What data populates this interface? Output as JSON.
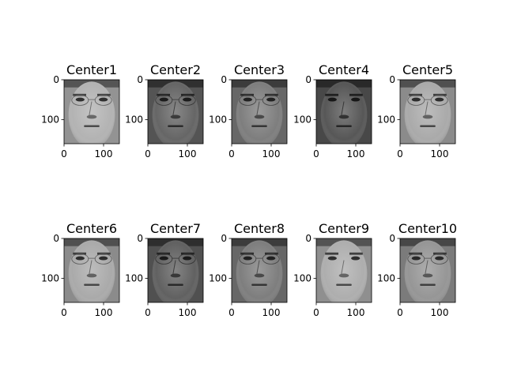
{
  "chart_data": {
    "type": "image-grid",
    "rows": 2,
    "cols": 5,
    "panels": [
      {
        "title": "Center1",
        "brightness": 0.74,
        "glasses": true
      },
      {
        "title": "Center2",
        "brightness": 0.42,
        "glasses": true
      },
      {
        "title": "Center3",
        "brightness": 0.52,
        "glasses": true
      },
      {
        "title": "Center4",
        "brightness": 0.36,
        "glasses": false
      },
      {
        "title": "Center5",
        "brightness": 0.7,
        "glasses": true
      },
      {
        "title": "Center6",
        "brightness": 0.7,
        "glasses": true
      },
      {
        "title": "Center7",
        "brightness": 0.4,
        "glasses": true
      },
      {
        "title": "Center8",
        "brightness": 0.52,
        "glasses": true
      },
      {
        "title": "Center9",
        "brightness": 0.72,
        "glasses": false
      },
      {
        "title": "Center10",
        "brightness": 0.62,
        "glasses": true
      }
    ],
    "x_ticks": [
      "0",
      "100"
    ],
    "y_ticks": [
      "0",
      "100"
    ],
    "x_tick_values": [
      0,
      100
    ],
    "y_tick_values": [
      0,
      100
    ],
    "image_width": 140,
    "image_height": 160
  }
}
